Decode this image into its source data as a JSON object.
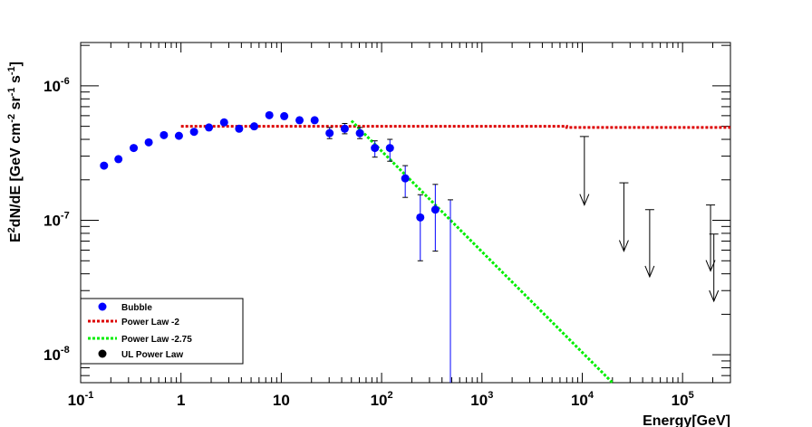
{
  "chart_data": {
    "type": "scatter",
    "title": "",
    "xlabel": "Energy[GeV]",
    "ylabel_parts": {
      "main": "E",
      "sup2": "2",
      "mid": "dN/dE [GeV cm",
      "supm2": "-2",
      "sr": " sr",
      "supm1a": "-1",
      "s": " s",
      "supm1b": "-1",
      "close": "]"
    },
    "x_scale": "log",
    "y_scale": "log",
    "xlim": [
      0.1,
      300000
    ],
    "ylim": [
      6.2e-09,
      2.1e-06
    ],
    "x_ticks": [
      {
        "base": "10",
        "exp": "-1",
        "value": 0.1
      },
      {
        "base": "1",
        "exp": "",
        "value": 1
      },
      {
        "base": "10",
        "exp": "",
        "value": 10
      },
      {
        "base": "10",
        "exp": "2",
        "value": 100
      },
      {
        "base": "10",
        "exp": "3",
        "value": 1000
      },
      {
        "base": "10",
        "exp": "4",
        "value": 10000
      },
      {
        "base": "10",
        "exp": "5",
        "value": 100000
      }
    ],
    "y_ticks": [
      {
        "base": "10",
        "exp": "-8",
        "value": 1e-08
      },
      {
        "base": "10",
        "exp": "-7",
        "value": 1e-07
      },
      {
        "base": "10",
        "exp": "-6",
        "value": 1e-06
      }
    ],
    "grid": false,
    "legend_position": "bottom-left",
    "legend": [
      {
        "label": "Bubble",
        "marker": "circle",
        "color": "#0000ff"
      },
      {
        "label": "Power Law -2",
        "marker": "dotted-line",
        "color": "#dd0000"
      },
      {
        "label": "Power Law -2.75",
        "marker": "dotted-line",
        "color": "#00ee00"
      },
      {
        "label": "UL Power Law",
        "marker": "circle",
        "color": "#000000"
      }
    ],
    "series": [
      {
        "name": "Bubble",
        "color": "#0000ff",
        "x": [
          0.171,
          0.238,
          0.338,
          0.477,
          0.676,
          0.954,
          1.35,
          1.9,
          2.69,
          3.8,
          5.37,
          7.6,
          10.7,
          15.2,
          21.5,
          30.3,
          42.9,
          60.7,
          85.7,
          121,
          172,
          243,
          343,
          485
        ],
        "y": [
          2.55e-07,
          2.85e-07,
          3.45e-07,
          3.8e-07,
          4.3e-07,
          4.25e-07,
          4.55e-07,
          4.9e-07,
          5.35e-07,
          4.8e-07,
          5e-07,
          6.05e-07,
          5.95e-07,
          5.55e-07,
          5.55e-07,
          4.45e-07,
          4.8e-07,
          4.45e-07,
          3.45e-07,
          3.45e-07,
          2.05e-07,
          1.05e-07,
          1.2e-07,
          null
        ],
        "y_low": [
          null,
          null,
          null,
          null,
          null,
          null,
          null,
          null,
          null,
          null,
          null,
          null,
          null,
          null,
          null,
          4.05e-07,
          4.4e-07,
          4.05e-07,
          2.95e-07,
          2.75e-07,
          1.48e-07,
          5e-08,
          5.9e-08,
          5e-09
        ],
        "y_high": [
          null,
          null,
          null,
          null,
          null,
          null,
          null,
          null,
          null,
          null,
          null,
          null,
          null,
          null,
          null,
          4.9e-07,
          5.25e-07,
          4.9e-07,
          3.9e-07,
          4e-07,
          2.55e-07,
          1.55e-07,
          1.85e-07,
          1.42e-07
        ]
      },
      {
        "name": "Power Law -2",
        "color": "#dd0000",
        "style": "dotted",
        "x": [
          1.0,
          7000,
          7000,
          300000
        ],
        "y": [
          5e-07,
          5e-07,
          4.9e-07,
          4.9e-07
        ]
      },
      {
        "name": "Power Law -2.75",
        "color": "#00ee00",
        "style": "dotted",
        "x": [
          50,
          20000
        ],
        "y": [
          5.5e-07,
          6.2e-09
        ]
      },
      {
        "name": "UL Power Law",
        "color": "#000000",
        "type": "upper_limit_arrows",
        "x": [
          10500,
          26000,
          47000,
          190000,
          205000
        ],
        "y_top": [
          4.2e-07,
          1.9e-07,
          1.2e-07,
          1.3e-07,
          7.9e-08
        ],
        "y_arrow": [
          1.3e-07,
          5.9e-08,
          3.8e-08,
          4.2e-08,
          2.5e-08
        ]
      }
    ]
  }
}
